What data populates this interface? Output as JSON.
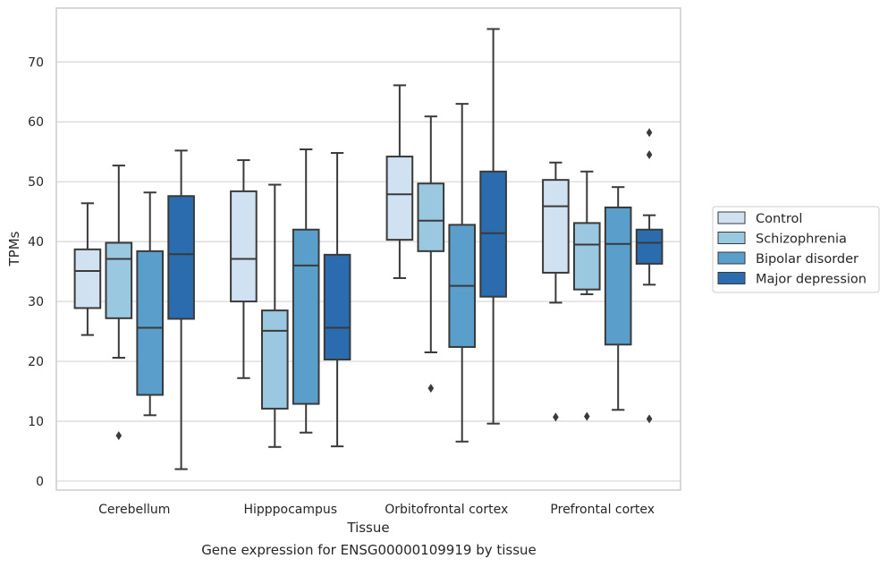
{
  "chart_data": {
    "type": "box",
    "xlabel": "Tissue",
    "ylabel": "TPMs",
    "caption": "Gene expression for ENSG00000109919 by tissue",
    "ylim": [
      -1.5,
      79
    ],
    "yticks": [
      0,
      10,
      20,
      30,
      40,
      50,
      60,
      70
    ],
    "grid": true,
    "legend_position": "right",
    "categories": [
      "Cerebellum",
      "Hipppocampus",
      "Orbitofrontal cortex",
      "Prefrontal cortex"
    ],
    "series": [
      {
        "name": "Control",
        "color": "#d0e2f2",
        "boxes": [
          {
            "whislo": 24.4,
            "q1": 28.9,
            "med": 35.1,
            "q3": 38.7,
            "whishi": 46.4,
            "fliers": []
          },
          {
            "whislo": 17.2,
            "q1": 30.0,
            "med": 37.1,
            "q3": 48.4,
            "whishi": 53.6,
            "fliers": []
          },
          {
            "whislo": 33.9,
            "q1": 40.3,
            "med": 47.9,
            "q3": 54.2,
            "whishi": 66.1,
            "fliers": []
          },
          {
            "whislo": 29.8,
            "q1": 34.8,
            "med": 45.9,
            "q3": 50.3,
            "whishi": 53.2,
            "fliers": [
              10.7
            ]
          }
        ]
      },
      {
        "name": "Schizophrenia",
        "color": "#9ac8e0",
        "boxes": [
          {
            "whislo": 20.6,
            "q1": 27.2,
            "med": 37.1,
            "q3": 39.8,
            "whishi": 52.7,
            "fliers": [
              7.6
            ]
          },
          {
            "whislo": 5.7,
            "q1": 12.1,
            "med": 25.1,
            "q3": 28.5,
            "whishi": 49.5,
            "fliers": []
          },
          {
            "whislo": 21.5,
            "q1": 38.4,
            "med": 43.5,
            "q3": 49.7,
            "whishi": 60.9,
            "fliers": [
              15.5
            ]
          },
          {
            "whislo": 31.2,
            "q1": 32.0,
            "med": 39.5,
            "q3": 43.1,
            "whishi": 51.7,
            "fliers": [
              10.8
            ]
          }
        ]
      },
      {
        "name": "Bipolar disorder",
        "color": "#5a9fcb",
        "boxes": [
          {
            "whislo": 11.0,
            "q1": 14.4,
            "med": 25.6,
            "q3": 38.4,
            "whishi": 48.2,
            "fliers": []
          },
          {
            "whislo": 8.1,
            "q1": 12.9,
            "med": 36.0,
            "q3": 42.0,
            "whishi": 55.4,
            "fliers": []
          },
          {
            "whislo": 6.6,
            "q1": 22.4,
            "med": 32.6,
            "q3": 42.8,
            "whishi": 63.0,
            "fliers": []
          },
          {
            "whislo": 11.9,
            "q1": 22.8,
            "med": 39.6,
            "q3": 45.7,
            "whishi": 49.1,
            "fliers": []
          }
        ]
      },
      {
        "name": "Major depression",
        "color": "#2a6cad",
        "boxes": [
          {
            "whislo": 2.0,
            "q1": 27.1,
            "med": 37.9,
            "q3": 47.6,
            "whishi": 55.2,
            "fliers": []
          },
          {
            "whislo": 5.8,
            "q1": 20.3,
            "med": 25.6,
            "q3": 37.8,
            "whishi": 54.8,
            "fliers": []
          },
          {
            "whislo": 9.6,
            "q1": 30.8,
            "med": 41.4,
            "q3": 51.7,
            "whishi": 75.5,
            "fliers": []
          },
          {
            "whislo": 32.8,
            "q1": 36.3,
            "med": 39.8,
            "q3": 42.0,
            "whishi": 44.4,
            "fliers": [
              58.2,
              54.5,
              10.4
            ]
          }
        ]
      }
    ]
  }
}
